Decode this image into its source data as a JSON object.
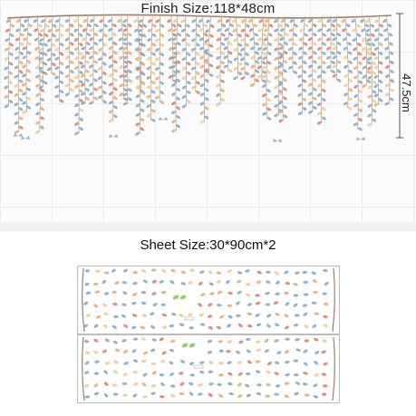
{
  "finish": {
    "label": "Finish Size:118*48cm"
  },
  "height": {
    "label": "47.5cm"
  },
  "sheet": {
    "label": "Sheet Size:30*90cm*2"
  },
  "colors": {
    "leaf_blue": "#7fa7c2",
    "leaf_orange": "#e7a76c",
    "leaf_red": "#d77a68",
    "leaf_yellow": "#ecc98a",
    "stem": "#b69a84",
    "branch": "#a1806a",
    "leaf_green": "#8fcf6a"
  }
}
